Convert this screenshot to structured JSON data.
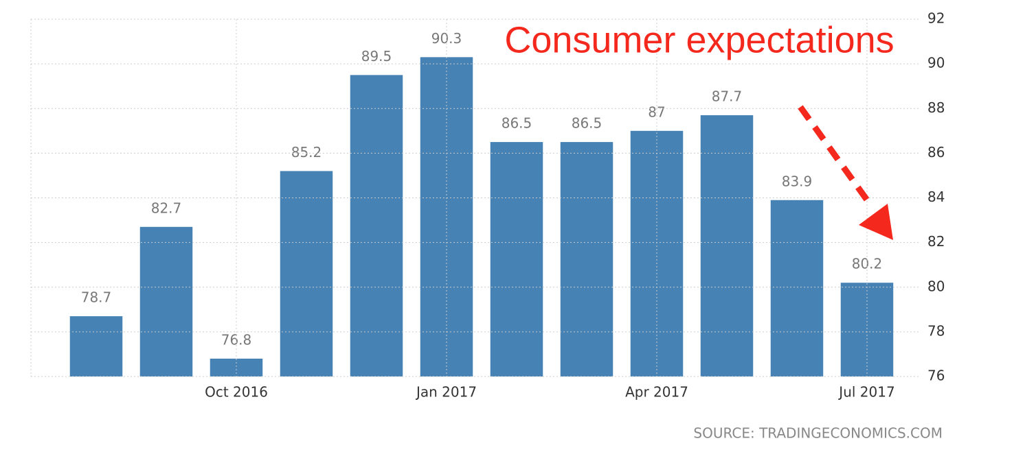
{
  "chart_data": {
    "type": "bar",
    "title": "Consumer expectations",
    "source": "SOURCE: TRADINGECONOMICS.COM",
    "categories": [
      null,
      null,
      "Oct 2016",
      null,
      null,
      "Jan 2017",
      null,
      null,
      "Apr 2017",
      null,
      null,
      "Jul 2017"
    ],
    "values": [
      78.7,
      82.7,
      76.8,
      85.2,
      89.5,
      90.3,
      86.5,
      86.5,
      87,
      87.7,
      83.9,
      80.2
    ],
    "color": "#4682b4",
    "ylim": [
      76,
      92
    ],
    "yticks": [
      76,
      78,
      80,
      82,
      84,
      86,
      88,
      90,
      92
    ],
    "grid": true
  }
}
